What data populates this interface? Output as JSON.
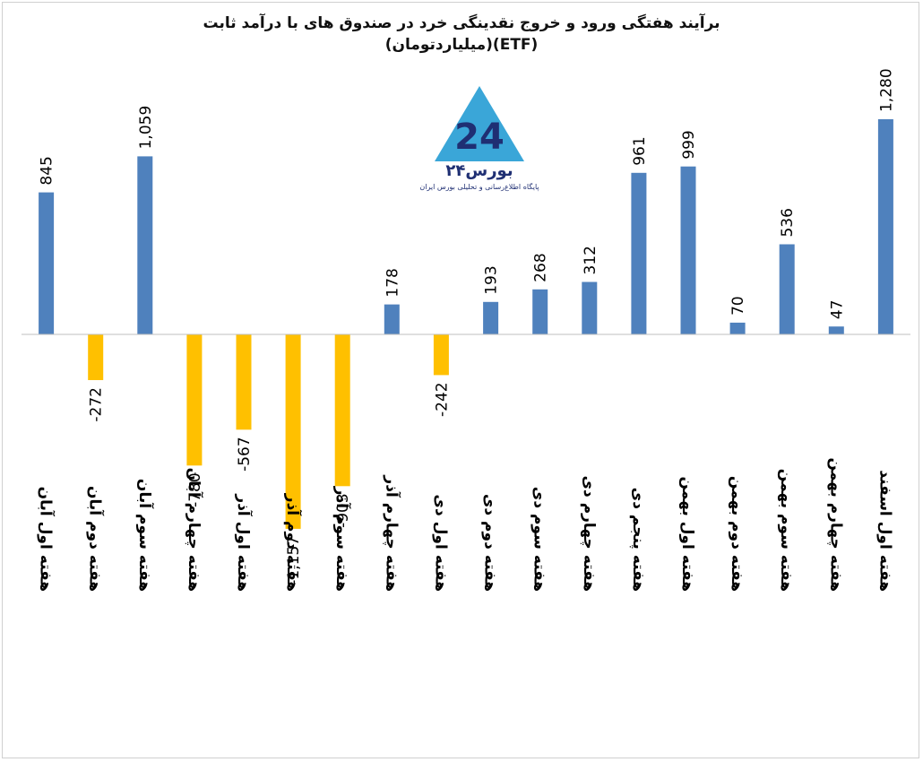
{
  "title": {
    "line1": "برآیند هفتگی ورود و خروج نقدینگی خرد در صندوق های با درآمد ثابت",
    "line2": "(ETF)(میلیاردتومان)"
  },
  "logo": {
    "brand_text": "بورس۲۴",
    "tagline": "پایگاه اطلاع‌رسانی و تحلیلی بورس ایران",
    "mark_text": "24",
    "icon": "triangle-24-logo"
  },
  "colors": {
    "positive": "#4f81bd",
    "negative": "#ffc000",
    "axis": "#bfbfbf"
  },
  "chart_data": {
    "type": "bar",
    "title": "برآیند هفتگی ورود و خروج نقدینگی خرد در صندوق های با درآمد ثابت (ETF)(میلیاردتومان)",
    "categories": [
      "هفته اول آبان",
      "هفته دوم آبان",
      "هفته سوم آبان",
      "هفته چهارم آبان",
      "هفته اول آذر",
      "هفته دوم آذر",
      "هفته سوم آذر",
      "هفته چهارم آذر",
      "هفته اول دی",
      "هفته دوم دی",
      "هفته سوم دی",
      "هفته چهارم دی",
      "هفته پنجم دی",
      "هفته اول بهمن",
      "هفته دوم بهمن",
      "هفته سوم بهمن",
      "هفته چهارم بهمن",
      "هفته اول اسفند"
    ],
    "values": [
      845,
      -272,
      1059,
      -780,
      -567,
      -1157,
      -903,
      178,
      -242,
      193,
      268,
      312,
      961,
      999,
      70,
      536,
      47,
      1280
    ],
    "value_labels": [
      "845",
      "-272",
      "1,059",
      "-780",
      "-567",
      "-1,157",
      "-903",
      "178",
      "-242",
      "193",
      "268",
      "312",
      "961",
      "999",
      "70",
      "536",
      "47",
      "1,280"
    ],
    "positive_color": "#4f81bd",
    "negative_color": "#ffc000",
    "grid": false,
    "legend": "none"
  }
}
